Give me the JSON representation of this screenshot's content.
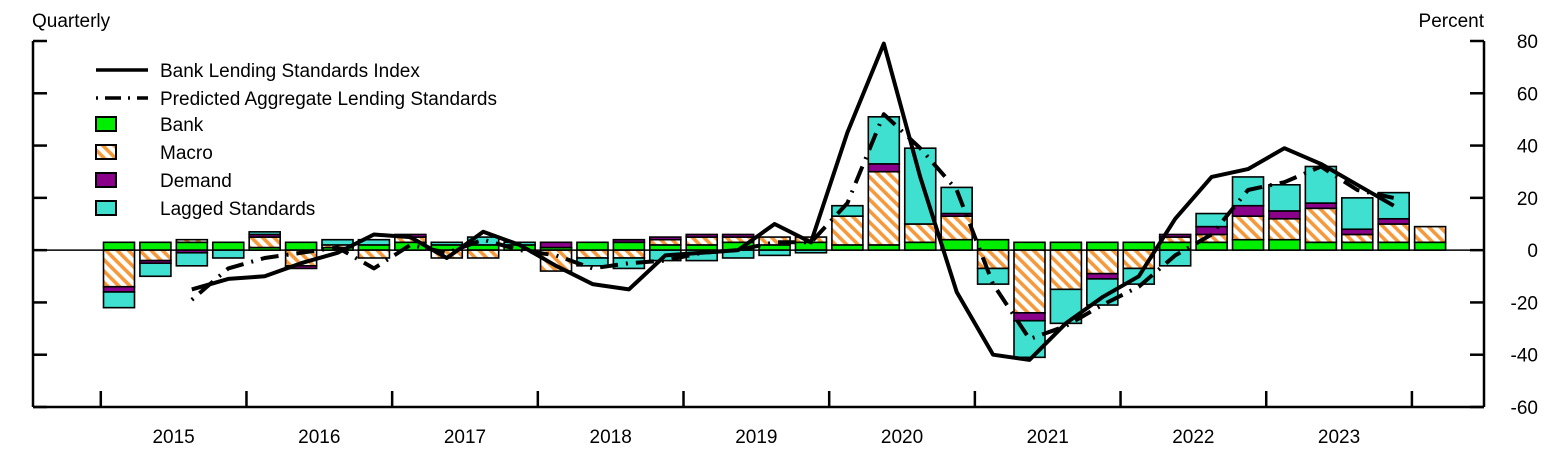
{
  "chart_data": {
    "type": "bar",
    "left_label": "Quarterly",
    "right_label": "Percent",
    "xlabel": "",
    "ylabel": "",
    "ylim": [
      -60,
      80
    ],
    "yticks": [
      80,
      60,
      40,
      20,
      0,
      -20,
      -40,
      -60
    ],
    "year_labels": [
      "2015",
      "2016",
      "2017",
      "2018",
      "2019",
      "2020",
      "2021",
      "2022",
      "2023"
    ],
    "quarters": [
      "2015Q1",
      "2015Q2",
      "2015Q3",
      "2015Q4",
      "2016Q1",
      "2016Q2",
      "2016Q3",
      "2016Q4",
      "2017Q1",
      "2017Q2",
      "2017Q3",
      "2017Q4",
      "2018Q1",
      "2018Q2",
      "2018Q3",
      "2018Q4",
      "2019Q1",
      "2019Q2",
      "2019Q3",
      "2019Q4",
      "2020Q1",
      "2020Q2",
      "2020Q3",
      "2020Q4",
      "2021Q1",
      "2021Q2",
      "2021Q3",
      "2021Q4",
      "2022Q1",
      "2022Q2",
      "2022Q3",
      "2022Q4",
      "2023Q1",
      "2023Q2",
      "2023Q3",
      "2023Q4",
      "2024Q1"
    ],
    "legend": {
      "index": "Bank Lending Standards Index",
      "predicted": "Predicted Aggregate Lending Standards",
      "bank": "Bank",
      "macro": "Macro",
      "demand": "Demand",
      "lagged": "Lagged Standards"
    },
    "colors": {
      "bank": "#00ee00",
      "macro": "#f59a3c",
      "demand": "#8b008b",
      "lagged": "#40e0d0",
      "line": "#000000"
    },
    "series": [
      {
        "key": "bank",
        "values": [
          3,
          3,
          3,
          3,
          1,
          3,
          1,
          2,
          3,
          2,
          2,
          2,
          1,
          3,
          3,
          2,
          2,
          3,
          2,
          3,
          2,
          2,
          3,
          4,
          4,
          3,
          3,
          3,
          3,
          3,
          3,
          4,
          4,
          3,
          3,
          3,
          3
        ]
      },
      {
        "key": "macro",
        "values": [
          -14,
          -4,
          1,
          0,
          4,
          -6,
          1,
          -3,
          2,
          -3,
          -3,
          0,
          -8,
          -3,
          -3,
          2,
          3,
          2,
          3,
          2,
          11,
          28,
          7,
          9,
          -7,
          -24,
          -15,
          -9,
          -7,
          2,
          3,
          9,
          8,
          13,
          3,
          7,
          6
        ]
      },
      {
        "key": "demand",
        "values": [
          -2,
          -1,
          -1,
          0,
          1,
          -1,
          0,
          0,
          1,
          0,
          0,
          0,
          2,
          0,
          1,
          1,
          1,
          1,
          0,
          0,
          0,
          3,
          0,
          1,
          0,
          -3,
          0,
          -2,
          0,
          1,
          3,
          4,
          3,
          2,
          2,
          2,
          0
        ]
      },
      {
        "key": "lagged",
        "values": [
          -6,
          -5,
          -5,
          -3,
          1,
          0,
          2,
          2,
          0,
          1,
          3,
          1,
          0,
          -3,
          -4,
          -4,
          -4,
          -3,
          -2,
          -1,
          4,
          18,
          29,
          10,
          -6,
          -14,
          -13,
          -10,
          -6,
          -6,
          5,
          11,
          10,
          14,
          12,
          10,
          0
        ]
      }
    ],
    "bank_lending_standards_index": [
      null,
      null,
      -15,
      -11,
      -10,
      -5,
      -1,
      6,
      5,
      -3,
      7,
      2,
      -6,
      -13,
      -15,
      -2,
      -1,
      0,
      10,
      3,
      45,
      79,
      28,
      -16,
      -40,
      -42,
      -28,
      -18,
      -10,
      12,
      28,
      31,
      39,
      33,
      25,
      17,
      null
    ],
    "predicted_aggregate_lending_standards": [
      null,
      null,
      -19,
      -7,
      -3,
      -1,
      1,
      -7,
      2,
      -1,
      4,
      0,
      -2,
      -7,
      -5,
      -4,
      -1,
      0,
      3,
      3,
      18,
      52,
      39,
      23,
      -13,
      -34,
      -29,
      -21,
      -14,
      -2,
      6,
      23,
      26,
      32,
      23,
      20,
      null
    ]
  }
}
